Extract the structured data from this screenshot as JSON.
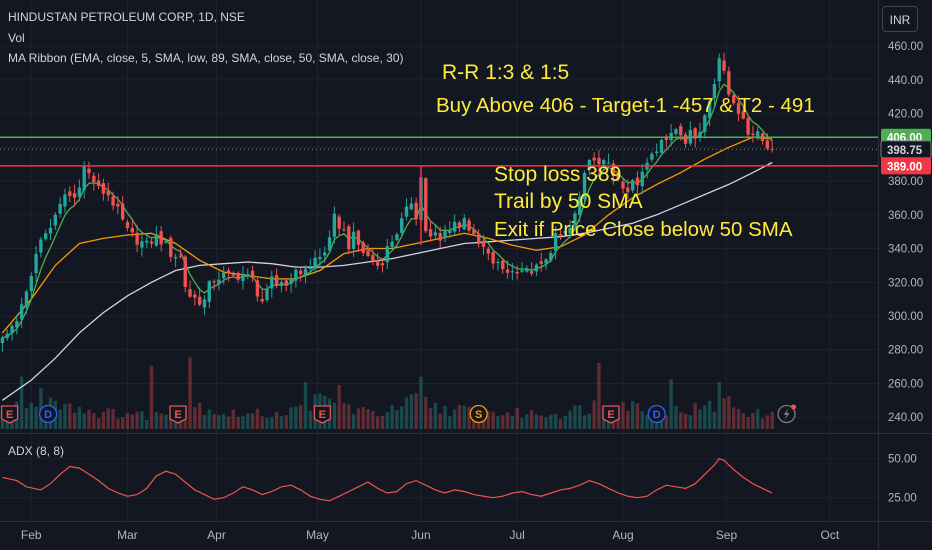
{
  "header": {
    "symbol": "HINDUSTAN PETROLEUM CORP, 1D, NSE",
    "volume": "Vol",
    "ma_ribbon": "MA Ribbon (EMA, close, 5, SMA, low, 89, SMA, close, 50, SMA, close, 30)",
    "currency_button": "INR"
  },
  "annotations": {
    "rr": "R-R 1:3 & 1:5",
    "buy": "Buy Above 406 - Target-1 -457 & T2 - 491",
    "stop": "Stop loss 389",
    "trail": "Trail by 50 SMA",
    "exit": "Exit if Price Close below 50 SMA"
  },
  "colors": {
    "background": "#131722",
    "up": "#26a69a",
    "down": "#ef5350",
    "ema5": "#4caf50",
    "sma30": "#ff9800",
    "sma50": "#d1d4dc",
    "buy_line": "#4caf50",
    "stop_line": "#f23645",
    "annotation": "#ffeb3b",
    "adx": "#ef5350"
  },
  "chart_data": {
    "type": "candlestick",
    "y_axis": {
      "ticks": [
        240,
        260,
        280,
        300,
        320,
        340,
        360,
        380,
        400,
        420,
        440,
        460
      ],
      "tick_labels": [
        "240.00",
        "260.00",
        "280.00",
        "300.00",
        "320.00",
        "340.00",
        "360.00",
        "380.00",
        "400.00",
        "420.00",
        "440.00",
        "460.00"
      ],
      "range": [
        233,
        466
      ]
    },
    "x_axis": {
      "labels": [
        "Feb",
        "Mar",
        "Apr",
        "May",
        "Jun",
        "Jul",
        "Aug",
        "Sep",
        "Oct"
      ],
      "positions": [
        0.0,
        20.0,
        38.5,
        59.5,
        81.0,
        101.0,
        123.0,
        144.5,
        166.0
      ],
      "range": [
        -6.5,
        176
      ]
    },
    "price_labels": [
      {
        "value": 406,
        "text": "406.00",
        "color": "#4caf50"
      },
      {
        "value": 398.75,
        "text": "398.75",
        "color": "#131722"
      },
      {
        "value": 389,
        "text": "389.00",
        "color": "#f23645"
      }
    ],
    "levels": {
      "buy": 406,
      "stop": 389,
      "last_close": 398.75
    },
    "close_path": [
      [
        -6,
        285
      ],
      [
        -3,
        296
      ],
      [
        -1,
        316
      ],
      [
        2,
        345
      ],
      [
        5,
        358
      ],
      [
        7,
        372
      ],
      [
        9,
        370
      ],
      [
        11,
        388
      ],
      [
        13,
        380
      ],
      [
        14,
        375
      ],
      [
        16,
        372
      ],
      [
        18,
        362
      ],
      [
        20,
        350
      ],
      [
        22,
        345
      ],
      [
        24,
        342
      ],
      [
        26,
        347
      ],
      [
        28,
        342
      ],
      [
        29,
        337
      ],
      [
        31,
        335
      ],
      [
        32,
        318
      ],
      [
        33,
        312
      ],
      [
        35,
        309
      ],
      [
        36,
        309
      ],
      [
        37,
        318
      ],
      [
        38,
        322
      ],
      [
        40,
        324
      ],
      [
        42,
        323
      ],
      [
        44,
        325
      ],
      [
        46,
        321
      ],
      [
        47,
        314
      ],
      [
        48,
        309
      ],
      [
        49,
        313
      ],
      [
        50,
        321
      ],
      [
        51,
        318
      ],
      [
        52,
        321
      ],
      [
        53,
        318
      ],
      [
        54,
        324
      ],
      [
        55,
        325
      ],
      [
        56,
        326
      ],
      [
        57,
        329
      ],
      [
        58,
        328
      ],
      [
        59,
        334
      ],
      [
        60,
        335
      ],
      [
        61,
        339
      ],
      [
        62,
        344
      ],
      [
        63,
        358
      ],
      [
        64,
        354
      ],
      [
        65,
        350
      ],
      [
        66,
        342
      ],
      [
        67,
        347
      ],
      [
        68,
        342
      ],
      [
        69,
        338
      ],
      [
        70,
        335
      ],
      [
        71,
        333
      ],
      [
        72,
        330
      ],
      [
        73,
        333
      ],
      [
        74,
        340
      ],
      [
        75,
        345
      ],
      [
        76,
        350
      ],
      [
        77,
        356
      ],
      [
        78,
        362
      ],
      [
        79,
        368
      ],
      [
        80,
        360
      ],
      [
        81,
        382
      ],
      [
        82,
        351
      ],
      [
        83,
        346
      ],
      [
        84,
        348
      ],
      [
        85,
        344
      ],
      [
        86,
        350
      ],
      [
        87,
        353
      ],
      [
        88,
        356
      ],
      [
        89,
        352
      ],
      [
        90,
        360
      ],
      [
        91,
        352
      ],
      [
        92,
        346
      ],
      [
        93,
        342
      ],
      [
        94,
        340
      ],
      [
        95,
        335
      ],
      [
        96,
        332
      ],
      [
        97,
        330
      ],
      [
        98,
        328
      ],
      [
        99,
        327
      ],
      [
        100,
        326
      ],
      [
        101,
        328
      ],
      [
        102,
        328
      ],
      [
        103,
        326
      ],
      [
        104,
        327
      ],
      [
        105,
        328
      ],
      [
        106,
        330
      ],
      [
        107,
        332
      ],
      [
        108,
        340
      ],
      [
        109,
        348
      ],
      [
        110,
        345
      ],
      [
        111,
        350
      ],
      [
        112,
        352
      ],
      [
        113,
        360
      ],
      [
        114,
        370
      ],
      [
        115,
        382
      ],
      [
        116,
        390
      ],
      [
        117,
        395
      ],
      [
        118,
        388
      ],
      [
        119,
        390
      ],
      [
        120,
        392
      ],
      [
        121,
        385
      ],
      [
        122,
        378
      ],
      [
        123,
        375
      ],
      [
        124,
        372
      ],
      [
        125,
        380
      ],
      [
        126,
        376
      ],
      [
        127,
        385
      ],
      [
        128,
        392
      ],
      [
        129,
        398
      ],
      [
        130,
        400
      ],
      [
        131,
        405
      ],
      [
        132,
        402
      ],
      [
        133,
        409
      ],
      [
        134,
        412
      ],
      [
        135,
        410
      ],
      [
        136,
        405
      ],
      [
        137,
        410
      ],
      [
        138,
        405
      ],
      [
        139,
        410
      ],
      [
        140,
        420
      ],
      [
        141,
        430
      ],
      [
        142,
        440
      ],
      [
        143,
        450
      ],
      [
        144,
        448
      ],
      [
        145,
        433
      ],
      [
        146,
        426
      ],
      [
        147,
        420
      ],
      [
        148,
        418
      ],
      [
        149,
        410
      ],
      [
        150,
        408
      ],
      [
        151,
        407
      ],
      [
        152,
        404
      ],
      [
        153,
        401
      ],
      [
        154,
        398.75
      ]
    ],
    "sma30_path": [
      [
        -6,
        290
      ],
      [
        0,
        310
      ],
      [
        5,
        330
      ],
      [
        10,
        343
      ],
      [
        15,
        346
      ],
      [
        20,
        348
      ],
      [
        25,
        349
      ],
      [
        30,
        343
      ],
      [
        35,
        333
      ],
      [
        40,
        326
      ],
      [
        45,
        324
      ],
      [
        50,
        322
      ],
      [
        55,
        322
      ],
      [
        60,
        327
      ],
      [
        65,
        337
      ],
      [
        70,
        340
      ],
      [
        75,
        340
      ],
      [
        80,
        343
      ],
      [
        85,
        346
      ],
      [
        90,
        349
      ],
      [
        95,
        346
      ],
      [
        100,
        342
      ],
      [
        105,
        339
      ],
      [
        110,
        341
      ],
      [
        115,
        348
      ],
      [
        120,
        360
      ],
      [
        125,
        370
      ],
      [
        130,
        378
      ],
      [
        135,
        385
      ],
      [
        140,
        393
      ],
      [
        145,
        400
      ],
      [
        150,
        406
      ],
      [
        154,
        405
      ]
    ],
    "sma50_path": [
      [
        -6,
        250
      ],
      [
        0,
        262
      ],
      [
        5,
        275
      ],
      [
        10,
        290
      ],
      [
        15,
        302
      ],
      [
        20,
        312
      ],
      [
        25,
        320
      ],
      [
        30,
        327
      ],
      [
        35,
        330
      ],
      [
        40,
        331
      ],
      [
        45,
        332
      ],
      [
        50,
        331
      ],
      [
        55,
        329
      ],
      [
        60,
        329
      ],
      [
        65,
        330
      ],
      [
        70,
        332
      ],
      [
        75,
        334
      ],
      [
        80,
        337
      ],
      [
        85,
        340
      ],
      [
        90,
        343
      ],
      [
        95,
        344
      ],
      [
        100,
        345
      ],
      [
        105,
        346
      ],
      [
        110,
        347
      ],
      [
        115,
        349
      ],
      [
        120,
        352
      ],
      [
        125,
        355
      ],
      [
        130,
        360
      ],
      [
        135,
        366
      ],
      [
        140,
        372
      ],
      [
        145,
        378
      ],
      [
        150,
        385
      ],
      [
        154,
        391
      ]
    ],
    "volume_profile": [
      [
        -6,
        0.35
      ],
      [
        0,
        0.45
      ],
      [
        5,
        0.6
      ],
      [
        10,
        0.4
      ],
      [
        15,
        0.3
      ],
      [
        20,
        0.3
      ],
      [
        25,
        0.25
      ],
      [
        30,
        0.35
      ],
      [
        35,
        0.45
      ],
      [
        40,
        0.3
      ],
      [
        45,
        0.28
      ],
      [
        50,
        0.3
      ],
      [
        55,
        0.35
      ],
      [
        60,
        0.55
      ],
      [
        65,
        0.45
      ],
      [
        70,
        0.3
      ],
      [
        75,
        0.35
      ],
      [
        80,
        0.55
      ],
      [
        85,
        0.4
      ],
      [
        90,
        0.35
      ],
      [
        95,
        0.3
      ],
      [
        100,
        0.3
      ],
      [
        105,
        0.3
      ],
      [
        110,
        0.3
      ],
      [
        115,
        0.4
      ],
      [
        120,
        0.55
      ],
      [
        125,
        0.45
      ],
      [
        130,
        0.35
      ],
      [
        135,
        0.35
      ],
      [
        140,
        0.4
      ],
      [
        145,
        0.5
      ],
      [
        150,
        0.3
      ],
      [
        154,
        0.25
      ]
    ],
    "volume_spikes": [
      [
        -2,
        0.95
      ],
      [
        2,
        0.75
      ],
      [
        25,
        1.15
      ],
      [
        33,
        1.3
      ],
      [
        57,
        0.85
      ],
      [
        64,
        0.8
      ],
      [
        81,
        0.95
      ],
      [
        118,
        1.2
      ],
      [
        133,
        0.9
      ],
      [
        143,
        0.85
      ],
      [
        145,
        0.6
      ]
    ],
    "event_markers": [
      {
        "x": -4.5,
        "letter": "E",
        "type": "earnings"
      },
      {
        "x": 3.5,
        "letter": "D",
        "type": "dividend"
      },
      {
        "x": 30.5,
        "letter": "E",
        "type": "earnings"
      },
      {
        "x": 60.5,
        "letter": "E",
        "type": "earnings"
      },
      {
        "x": 93,
        "letter": "S",
        "type": "split"
      },
      {
        "x": 120.5,
        "letter": "E",
        "type": "earnings"
      },
      {
        "x": 130,
        "letter": "D",
        "type": "dividend"
      }
    ],
    "adx": {
      "label": "ADX (8, 8)",
      "ticks": [
        25,
        50
      ],
      "tick_labels": [
        "25.00",
        "50.00"
      ],
      "range": [
        12,
        62
      ],
      "path": [
        [
          -6,
          38
        ],
        [
          -3,
          36
        ],
        [
          -1,
          32
        ],
        [
          2,
          30
        ],
        [
          4,
          34
        ],
        [
          6,
          40
        ],
        [
          8,
          45
        ],
        [
          10,
          44
        ],
        [
          12,
          40
        ],
        [
          14,
          36
        ],
        [
          16,
          31
        ],
        [
          18,
          28
        ],
        [
          20,
          26
        ],
        [
          22,
          27
        ],
        [
          24,
          31
        ],
        [
          26,
          39
        ],
        [
          28,
          42
        ],
        [
          30,
          40
        ],
        [
          32,
          35
        ],
        [
          34,
          30
        ],
        [
          36,
          27
        ],
        [
          38,
          24
        ],
        [
          40,
          25
        ],
        [
          42,
          28
        ],
        [
          44,
          32
        ],
        [
          46,
          30
        ],
        [
          48,
          27
        ],
        [
          50,
          29
        ],
        [
          52,
          32
        ],
        [
          54,
          33
        ],
        [
          56,
          30
        ],
        [
          58,
          26
        ],
        [
          60,
          24
        ],
        [
          62,
          23
        ],
        [
          64,
          26
        ],
        [
          66,
          29
        ],
        [
          68,
          32
        ],
        [
          70,
          35
        ],
        [
          72,
          31
        ],
        [
          74,
          28
        ],
        [
          76,
          29
        ],
        [
          78,
          34
        ],
        [
          80,
          36
        ],
        [
          82,
          33
        ],
        [
          84,
          30
        ],
        [
          86,
          28
        ],
        [
          88,
          30
        ],
        [
          90,
          29
        ],
        [
          92,
          27
        ],
        [
          94,
          26
        ],
        [
          96,
          25
        ],
        [
          98,
          26
        ],
        [
          100,
          28
        ],
        [
          102,
          29
        ],
        [
          104,
          27
        ],
        [
          106,
          26
        ],
        [
          108,
          28
        ],
        [
          110,
          30
        ],
        [
          112,
          31
        ],
        [
          114,
          33
        ],
        [
          116,
          36
        ],
        [
          118,
          34
        ],
        [
          120,
          31
        ],
        [
          122,
          28
        ],
        [
          124,
          26
        ],
        [
          126,
          25
        ],
        [
          128,
          26
        ],
        [
          130,
          30
        ],
        [
          132,
          33
        ],
        [
          134,
          32
        ],
        [
          136,
          31
        ],
        [
          138,
          34
        ],
        [
          140,
          40
        ],
        [
          142,
          46
        ],
        [
          143,
          50
        ],
        [
          144,
          49
        ],
        [
          146,
          43
        ],
        [
          148,
          38
        ],
        [
          150,
          34
        ],
        [
          152,
          31
        ],
        [
          154,
          28
        ]
      ]
    }
  }
}
